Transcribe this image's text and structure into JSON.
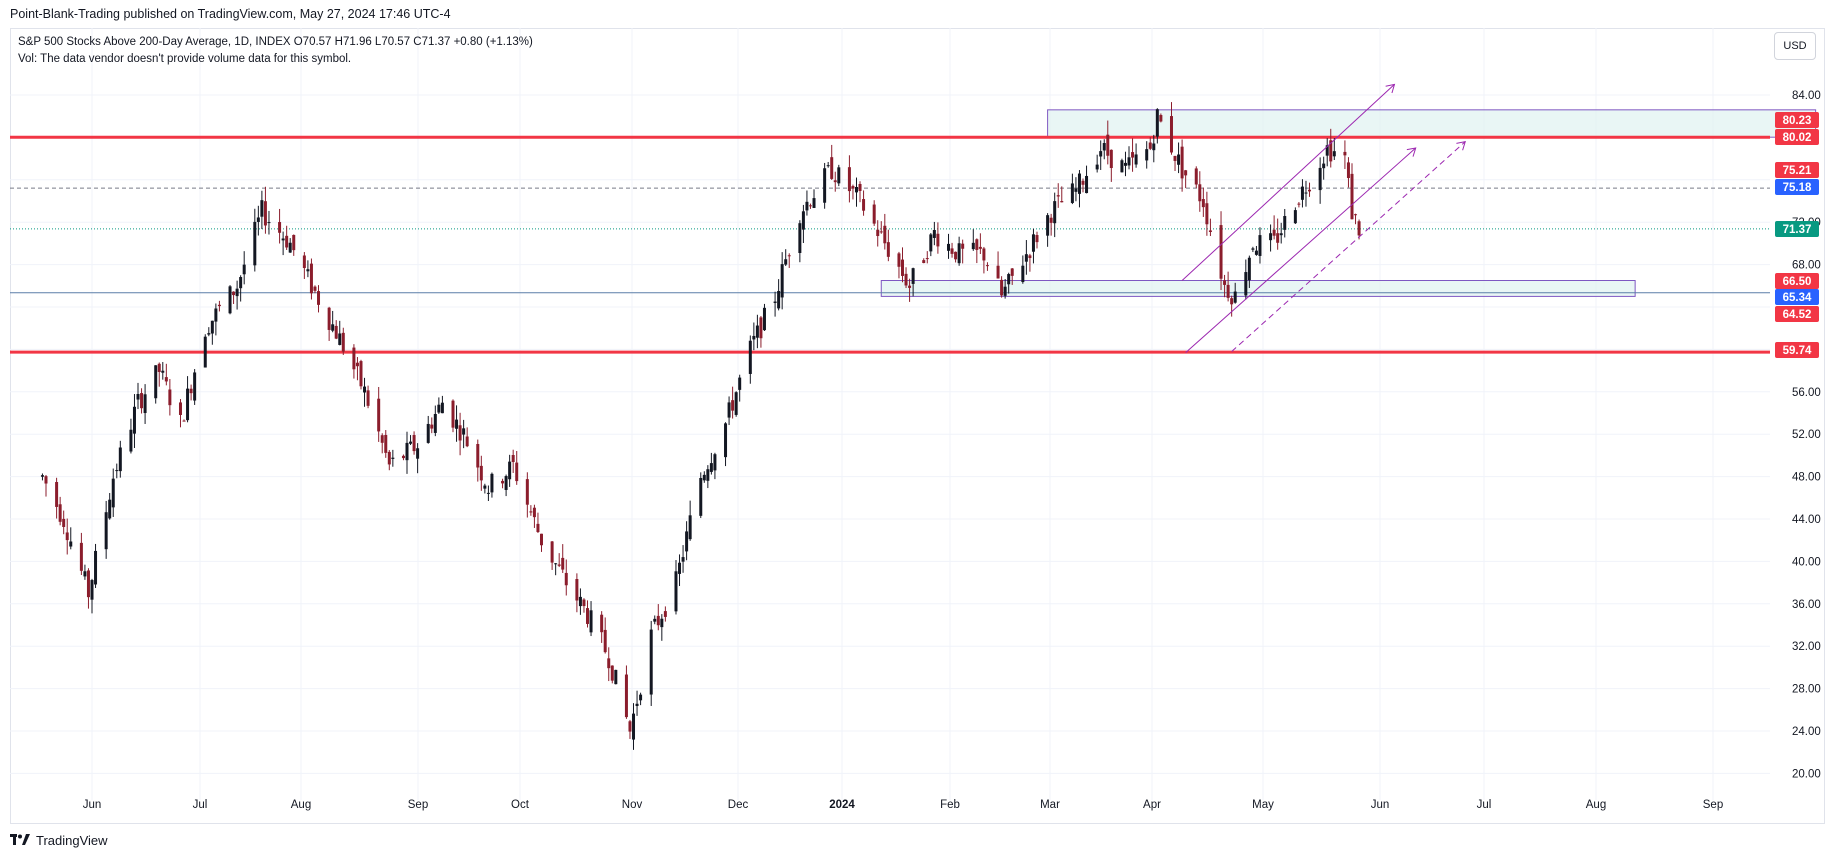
{
  "header": {
    "publisher_line": "Point-Blank-Trading published on TradingView.com, May 27, 2024 17:46 UTC-4"
  },
  "legend": {
    "symbol_line": "S&P 500 Stocks Above 200-Day Average, 1D, INDEX  O70.57  H71.96  L70.57  C71.37  +0.80 (+1.13%)",
    "volume_line": "Vol: The data vendor doesn't provide volume data for this symbol."
  },
  "toolbar": {
    "currency_label": "USD"
  },
  "footer": {
    "brand": "TradingView"
  },
  "colors": {
    "up": "#131722",
    "down": "#8b1d2c",
    "red_line": "#f23645",
    "blue_tag": "#2962ff",
    "green_tag": "#089981",
    "purple": "#9c27b0",
    "zone_fill": "#e0f2f1"
  },
  "chart_data": {
    "type": "candlestick",
    "x_axis_labels": [
      "Jun",
      "Jul",
      "Aug",
      "Sep",
      "Oct",
      "Nov",
      "Dec",
      "2024",
      "Feb",
      "Mar",
      "Apr",
      "May",
      "Jun",
      "Jul",
      "Aug",
      "Sep"
    ],
    "y_ticks": [
      "84.00",
      "72.00",
      "68.00",
      "56.00",
      "52.00",
      "48.00",
      "44.00",
      "40.00",
      "36.00",
      "32.00",
      "28.00",
      "24.00",
      "20.00"
    ],
    "ylim": [
      18,
      86
    ],
    "last_close": 71.37,
    "close_path": [
      {
        "date": "2023-05-18",
        "close": 48
      },
      {
        "date": "2023-05-24",
        "close": 44
      },
      {
        "date": "2023-05-31",
        "close": 37
      },
      {
        "date": "2023-06-07",
        "close": 48
      },
      {
        "date": "2023-06-14",
        "close": 55
      },
      {
        "date": "2023-06-20",
        "close": 58
      },
      {
        "date": "2023-06-26",
        "close": 53
      },
      {
        "date": "2023-07-03",
        "close": 62
      },
      {
        "date": "2023-07-12",
        "close": 66
      },
      {
        "date": "2023-07-19",
        "close": 73
      },
      {
        "date": "2023-07-27",
        "close": 70
      },
      {
        "date": "2023-08-02",
        "close": 66
      },
      {
        "date": "2023-08-10",
        "close": 61
      },
      {
        "date": "2023-08-17",
        "close": 56
      },
      {
        "date": "2023-08-24",
        "close": 49
      },
      {
        "date": "2023-09-01",
        "close": 51
      },
      {
        "date": "2023-09-08",
        "close": 55
      },
      {
        "date": "2023-09-14",
        "close": 52
      },
      {
        "date": "2023-09-21",
        "close": 47
      },
      {
        "date": "2023-09-28",
        "close": 49
      },
      {
        "date": "2023-10-06",
        "close": 42
      },
      {
        "date": "2023-10-13",
        "close": 38
      },
      {
        "date": "2023-10-19",
        "close": 35
      },
      {
        "date": "2023-10-25",
        "close": 31
      },
      {
        "date": "2023-10-31",
        "close": 24
      },
      {
        "date": "2023-11-06",
        "close": 33
      },
      {
        "date": "2023-11-13",
        "close": 38
      },
      {
        "date": "2023-11-20",
        "close": 48
      },
      {
        "date": "2023-11-27",
        "close": 53
      },
      {
        "date": "2023-12-04",
        "close": 60
      },
      {
        "date": "2023-12-11",
        "close": 65
      },
      {
        "date": "2023-12-18",
        "close": 73
      },
      {
        "date": "2023-12-27",
        "close": 77
      },
      {
        "date": "2024-01-04",
        "close": 74
      },
      {
        "date": "2024-01-11",
        "close": 70
      },
      {
        "date": "2024-01-18",
        "close": 66
      },
      {
        "date": "2024-01-25",
        "close": 71
      },
      {
        "date": "2024-02-01",
        "close": 69
      },
      {
        "date": "2024-02-08",
        "close": 69
      },
      {
        "date": "2024-02-13",
        "close": 65
      },
      {
        "date": "2024-02-20",
        "close": 69
      },
      {
        "date": "2024-02-27",
        "close": 73
      },
      {
        "date": "2024-03-05",
        "close": 75
      },
      {
        "date": "2024-03-12",
        "close": 79
      },
      {
        "date": "2024-03-19",
        "close": 77
      },
      {
        "date": "2024-03-26",
        "close": 79
      },
      {
        "date": "2024-03-28",
        "close": 82
      },
      {
        "date": "2024-04-04",
        "close": 77
      },
      {
        "date": "2024-04-10",
        "close": 74
      },
      {
        "date": "2024-04-16",
        "close": 66
      },
      {
        "date": "2024-04-19",
        "close": 65
      },
      {
        "date": "2024-04-24",
        "close": 70
      },
      {
        "date": "2024-04-30",
        "close": 70
      },
      {
        "date": "2024-05-06",
        "close": 74
      },
      {
        "date": "2024-05-10",
        "close": 76
      },
      {
        "date": "2024-05-15",
        "close": 79
      },
      {
        "date": "2024-05-20",
        "close": 78
      },
      {
        "date": "2024-05-22",
        "close": 73
      },
      {
        "date": "2024-05-24",
        "close": 71.37
      }
    ],
    "price_levels": [
      {
        "label": "80.23",
        "value": 80.23,
        "color": "#f23645"
      },
      {
        "label": "80.02",
        "value": 80.02,
        "color": "#f23645"
      },
      {
        "label": "75.21",
        "value": 75.21,
        "color": "#f23645"
      },
      {
        "label": "75.18",
        "value": 75.18,
        "color": "#2962ff"
      },
      {
        "label": "71.37",
        "value": 71.37,
        "color": "#089981"
      },
      {
        "label": "66.50",
        "value": 66.5,
        "color": "#f23645"
      },
      {
        "label": "65.34",
        "value": 65.34,
        "color": "#2962ff"
      },
      {
        "label": "64.52",
        "value": 64.52,
        "color": "#f23645"
      },
      {
        "label": "59.74",
        "value": 59.74,
        "color": "#f23645"
      }
    ],
    "horizontal_lines": [
      {
        "value": 80.02,
        "style": "thick-red"
      },
      {
        "value": 59.74,
        "style": "thick-red"
      },
      {
        "value": 75.21,
        "style": "dashed-gray"
      },
      {
        "value": 65.34,
        "style": "thin-blue"
      },
      {
        "value": 71.37,
        "style": "dotted-green"
      }
    ],
    "zones": [
      {
        "from_date": "2024-02-26",
        "to_date": "2024-09-30",
        "low": 80.02,
        "high": 82.6
      },
      {
        "from_date": "2024-01-10",
        "to_date": "2024-08-10",
        "low": 65.0,
        "high": 66.5
      }
    ],
    "channel": [
      {
        "style": "solid",
        "from": {
          "date": "2024-04-04",
          "value": 66.5
        },
        "to": {
          "date": "2024-06-03",
          "value": 85
        }
      },
      {
        "style": "solid",
        "from": {
          "date": "2024-04-05",
          "value": 59.7
        },
        "to": {
          "date": "2024-06-09",
          "value": 79
        }
      },
      {
        "style": "dashed",
        "from": {
          "date": "2024-04-18",
          "value": 59.8
        },
        "to": {
          "date": "2024-06-23",
          "value": 79.6
        }
      }
    ]
  }
}
